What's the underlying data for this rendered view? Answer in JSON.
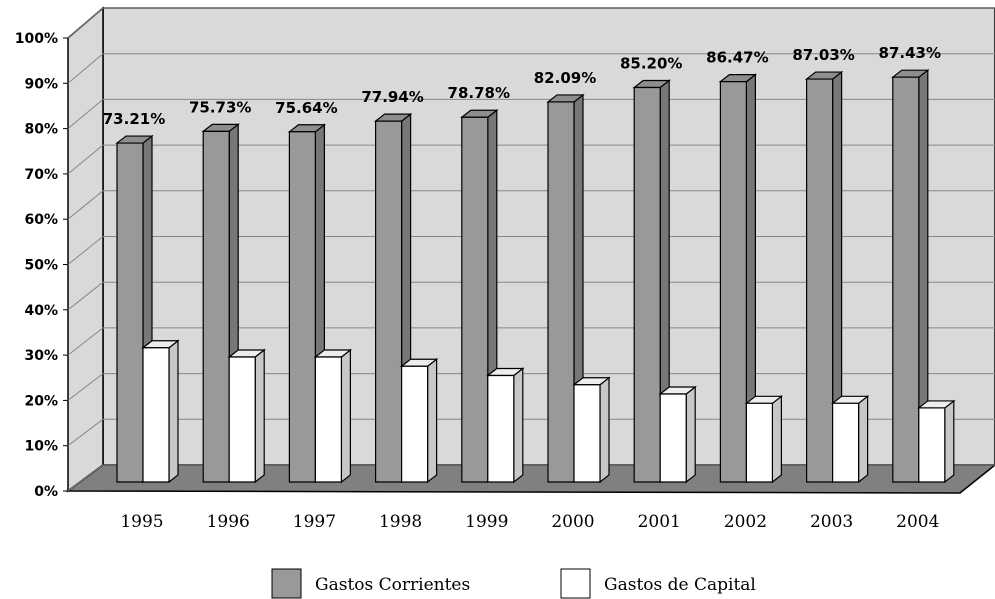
{
  "chart_data": {
    "type": "bar3d",
    "categories": [
      "1995",
      "1996",
      "1997",
      "1998",
      "1999",
      "2000",
      "2001",
      "2002",
      "2003",
      "2004"
    ],
    "series": [
      {
        "name": "Gastos Corrientes",
        "color": "#999999",
        "values": [
          73.21,
          75.73,
          75.64,
          77.94,
          78.78,
          82.09,
          85.2,
          86.47,
          87.03,
          87.43
        ],
        "value_labels": [
          "73.21%",
          "75.73%",
          "75.64%",
          "77.94%",
          "78.78%",
          "82.09%",
          "85.20%",
          "86.47%",
          "87.03%",
          "87.43%"
        ]
      },
      {
        "name": "Gastos de Capital",
        "color": "#ffffff",
        "values": [
          29,
          27,
          27,
          25,
          23,
          21,
          19,
          17,
          17,
          16
        ]
      }
    ],
    "ylim": [
      0,
      100
    ],
    "yticks": [
      {
        "value": 0,
        "label": "0%"
      },
      {
        "value": 10,
        "label": "10%"
      },
      {
        "value": 20,
        "label": "20%"
      },
      {
        "value": 30,
        "label": "30%"
      },
      {
        "value": 40,
        "label": "40%"
      },
      {
        "value": 50,
        "label": "50%"
      },
      {
        "value": 60,
        "label": "60%"
      },
      {
        "value": 70,
        "label": "70%"
      },
      {
        "value": 80,
        "label": "80%"
      },
      {
        "value": 90,
        "label": "90%"
      },
      {
        "value": 100,
        "label": "100%"
      }
    ],
    "grid": true,
    "legend": "bottom"
  }
}
